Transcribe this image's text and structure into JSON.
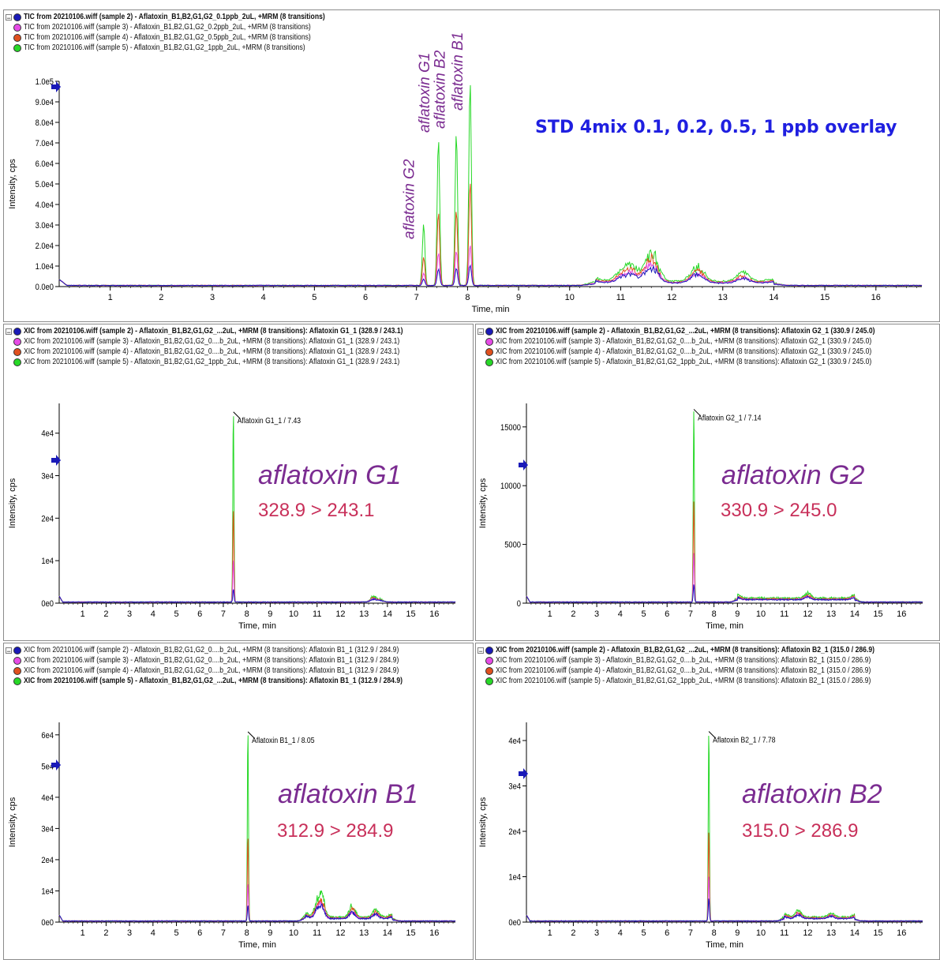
{
  "colors": {
    "sample2": "#1a1ab8",
    "sample3": "#e64be6",
    "sample4": "#e0501e",
    "sample5": "#27d827",
    "title_blue": "#1f1fe0",
    "label_purple": "#7b2c91",
    "mrm_red": "#c8305a"
  },
  "tic": {
    "legend": [
      {
        "color": "#1a1ab8",
        "text": "TIC from 20210106.wiff (sample 2) - Aflatoxin_B1,B2,G1,G2_0.1ppb_2uL, +MRM (8 transitions)",
        "bold": true
      },
      {
        "color": "#e64be6",
        "text": "TIC from 20210106.wiff (sample 3) - Aflatoxin_B1,B2,G1,G2_0.2ppb_2uL, +MRM (8 transitions)",
        "bold": false
      },
      {
        "color": "#e0501e",
        "text": "TIC from 20210106.wiff (sample 4) - Aflatoxin_B1,B2,G1,G2_0.5ppb_2uL, +MRM (8 transitions)",
        "bold": false
      },
      {
        "color": "#27d827",
        "text": "TIC from 20210106.wiff (sample 5) - Aflatoxin_B1,B2,G1,G2_1ppb_2uL, +MRM (8 transitions)",
        "bold": false
      }
    ],
    "overlay_title": "STD 4mix 0.1, 0.2, 0.5, 1 ppb overlay",
    "peak_labels": [
      "aflatoxin G2",
      "aflatoxin G1",
      "aflatoxin B2",
      "aflatoxin B1"
    ]
  },
  "panels": {
    "g1": {
      "legend": [
        {
          "color": "#1a1ab8",
          "text": "XIC from 20210106.wiff (sample 2) - Aflatoxin_B1,B2,G1,G2_...2uL, +MRM (8 transitions): Aflatoxin G1_1 (328.9 / 243.1)",
          "bold": true
        },
        {
          "color": "#e64be6",
          "text": "XIC from 20210106.wiff (sample 3) - Aflatoxin_B1,B2,G1,G2_0....b_2uL, +MRM (8 transitions): Aflatoxin G1_1 (328.9 / 243.1)",
          "bold": false
        },
        {
          "color": "#e0501e",
          "text": "XIC from 20210106.wiff (sample 4) - Aflatoxin_B1,B2,G1,G2_0....b_2uL, +MRM (8 transitions): Aflatoxin G1_1 (328.9 / 243.1)",
          "bold": false
        },
        {
          "color": "#27d827",
          "text": "XIC from 20210106.wiff (sample 5) - Aflatoxin_B1,B2,G1,G2_1ppb_2uL, +MRM (8 transitions): Aflatoxin G1_1 (328.9 / 243.1)",
          "bold": false
        }
      ],
      "name": "aflatoxin G1",
      "mrm": "328.9 > 243.1",
      "peak_annotation": "Aflatoxin G1_1 / 7.43"
    },
    "g2": {
      "legend": [
        {
          "color": "#1a1ab8",
          "text": "XIC from 20210106.wiff (sample 2) - Aflatoxin_B1,B2,G1,G2_...2uL, +MRM (8 transitions): Aflatoxin G2_1 (330.9 / 245.0)",
          "bold": true
        },
        {
          "color": "#e64be6",
          "text": "XIC from 20210106.wiff (sample 3) - Aflatoxin_B1,B2,G1,G2_0....b_2uL, +MRM (8 transitions): Aflatoxin G2_1 (330.9 / 245.0)",
          "bold": false
        },
        {
          "color": "#e0501e",
          "text": "XIC from 20210106.wiff (sample 4) - Aflatoxin_B1,B2,G1,G2_0....b_2uL, +MRM (8 transitions): Aflatoxin G2_1 (330.9 / 245.0)",
          "bold": false
        },
        {
          "color": "#27d827",
          "text": "XIC from 20210106.wiff (sample 5) - Aflatoxin_B1,B2,G1,G2_1ppb_2uL, +MRM (8 transitions): Aflatoxin G2_1 (330.9 / 245.0)",
          "bold": false
        }
      ],
      "name": "aflatoxin G2",
      "mrm": "330.9 > 245.0",
      "peak_annotation": "Aflatoxin G2_1 / 7.14"
    },
    "b1": {
      "legend": [
        {
          "color": "#1a1ab8",
          "text": "XIC from 20210106.wiff (sample 2) - Aflatoxin_B1,B2,G1,G2_0....b_2uL, +MRM (8 transitions): Aflatoxin B1_1 (312.9 / 284.9)",
          "bold": false
        },
        {
          "color": "#e64be6",
          "text": "XIC from 20210106.wiff (sample 3) - Aflatoxin_B1,B2,G1,G2_0....b_2uL, +MRM (8 transitions): Aflatoxin B1_1 (312.9 / 284.9)",
          "bold": false
        },
        {
          "color": "#e0501e",
          "text": "XIC from 20210106.wiff (sample 4) - Aflatoxin_B1,B2,G1,G2_0....b_2uL, +MRM (8 transitions): Aflatoxin B1_1 (312.9 / 284.9)",
          "bold": false
        },
        {
          "color": "#27d827",
          "text": "XIC from 20210106.wiff (sample 5) - Aflatoxin_B1,B2,G1,G2_...2uL, +MRM (8 transitions): Aflatoxin B1_1 (312.9 / 284.9)",
          "bold": true
        }
      ],
      "name": "aflatoxin B1",
      "mrm": "312.9 > 284.9",
      "peak_annotation": "Aflatoxin B1_1 / 8.05"
    },
    "b2": {
      "legend": [
        {
          "color": "#1a1ab8",
          "text": "XIC from 20210106.wiff (sample 2) - Aflatoxin_B1,B2,G1,G2_...2uL, +MRM (8 transitions): Aflatoxin B2_1 (315.0 / 286.9)",
          "bold": true
        },
        {
          "color": "#e64be6",
          "text": "XIC from 20210106.wiff (sample 3) - Aflatoxin_B1,B2,G1,G2_0....b_2uL, +MRM (8 transitions): Aflatoxin B2_1 (315.0 / 286.9)",
          "bold": false
        },
        {
          "color": "#e0501e",
          "text": "XIC from 20210106.wiff (sample 4) - Aflatoxin_B1,B2,G1,G2_0....b_2uL, +MRM (8 transitions): Aflatoxin B2_1 (315.0 / 286.9)",
          "bold": false
        },
        {
          "color": "#27d827",
          "text": "XIC from 20210106.wiff (sample 5) - Aflatoxin_B1,B2,G1,G2_1ppb_2uL, +MRM (8 transitions): Aflatoxin B2_1 (315.0 / 286.9)",
          "bold": false
        }
      ],
      "name": "aflatoxin B2",
      "mrm": "315.0 > 286.9",
      "peak_annotation": "Aflatoxin B2_1 / 7.78"
    }
  },
  "chart_data": [
    {
      "id": "tic",
      "type": "line",
      "xlabel": "Time, min",
      "ylabel": "Intensity, cps",
      "xlim": [
        0,
        16.9
      ],
      "ylim": [
        0,
        100000
      ],
      "xticks": [
        1,
        2,
        3,
        4,
        5,
        6,
        7,
        8,
        9,
        10,
        11,
        12,
        13,
        14,
        15,
        16
      ],
      "yticks": [
        0,
        10000,
        20000,
        30000,
        40000,
        50000,
        60000,
        70000,
        80000,
        90000,
        100000
      ],
      "yticklabels": [
        "0.0e0",
        "1.0e4",
        "2.0e4",
        "3.0e4",
        "4.0e4",
        "5.0e4",
        "6.0e4",
        "7.0e4",
        "8.0e4",
        "9.0e4",
        "1.0e5"
      ],
      "peaks": [
        {
          "rt": 7.14,
          "heights": [
            3000,
            6000,
            14000,
            30000
          ]
        },
        {
          "rt": 7.43,
          "heights": [
            8000,
            16000,
            36000,
            72000
          ]
        },
        {
          "rt": 7.78,
          "heights": [
            8500,
            17000,
            37000,
            75000
          ]
        },
        {
          "rt": 8.05,
          "heights": [
            10000,
            20000,
            51000,
            100000
          ]
        }
      ],
      "baseline_features": [
        [
          10.5,
          1500
        ],
        [
          11.0,
          3500
        ],
        [
          11.2,
          7000
        ],
        [
          11.6,
          14000
        ],
        [
          12.5,
          7000
        ],
        [
          13.4,
          4000
        ],
        [
          14.0,
          1000
        ]
      ],
      "series": [
        {
          "name": "TIC from 20210106.wiff (sample 2)"
        },
        {
          "name": "TIC from 20210106.wiff (sample 3)"
        },
        {
          "name": "TIC from 20210106.wiff (sample 4)"
        },
        {
          "name": "TIC from 20210106.wiff (sample 5)"
        }
      ]
    },
    {
      "id": "g1",
      "type": "line",
      "xlabel": "Time, min",
      "ylabel": "Intensity, cps",
      "xlim": [
        0,
        16.9
      ],
      "ylim": [
        0,
        47000
      ],
      "xticks": [
        1,
        2,
        3,
        4,
        5,
        6,
        7,
        8,
        9,
        10,
        11,
        12,
        13,
        14,
        15,
        16
      ],
      "yticks": [
        0,
        10000,
        20000,
        30000,
        40000
      ],
      "yticklabels": [
        "0e0",
        "1e4",
        "2e4",
        "3e4",
        "4e4"
      ],
      "peaks": [
        {
          "rt": 7.43,
          "heights": [
            3000,
            10000,
            22000,
            45000
          ]
        }
      ],
      "baseline_features": [
        [
          13.4,
          1200
        ],
        [
          13.7,
          600
        ]
      ],
      "series": [
        {
          "name": "sample 2"
        },
        {
          "name": "sample 3"
        },
        {
          "name": "sample 4"
        },
        {
          "name": "sample 5"
        }
      ]
    },
    {
      "id": "g2",
      "type": "line",
      "xlabel": "Time, min",
      "ylabel": "Intensity, cps",
      "xlim": [
        0,
        16.9
      ],
      "ylim": [
        0,
        17000
      ],
      "xticks": [
        1,
        2,
        3,
        4,
        5,
        6,
        7,
        8,
        9,
        10,
        11,
        12,
        13,
        14,
        15,
        16
      ],
      "yticks": [
        0,
        5000,
        10000,
        15000
      ],
      "yticklabels": [
        "0",
        "5000",
        "10000",
        "15000"
      ],
      "peaks": [
        {
          "rt": 7.14,
          "heights": [
            1500,
            4200,
            8700,
            16500
          ]
        }
      ],
      "baseline_features": [
        [
          9.0,
          300
        ],
        [
          12.0,
          400
        ],
        [
          14.0,
          300
        ]
      ],
      "series": [
        {
          "name": "sample 2"
        },
        {
          "name": "sample 3"
        },
        {
          "name": "sample 4"
        },
        {
          "name": "sample 5"
        }
      ]
    },
    {
      "id": "b1",
      "type": "line",
      "xlabel": "Time, min",
      "ylabel": "Intensity, cps",
      "xlim": [
        0,
        16.9
      ],
      "ylim": [
        0,
        64000
      ],
      "xticks": [
        1,
        2,
        3,
        4,
        5,
        6,
        7,
        8,
        9,
        10,
        11,
        12,
        13,
        14,
        15,
        16
      ],
      "yticks": [
        0,
        10000,
        20000,
        30000,
        40000,
        50000,
        60000
      ],
      "yticklabels": [
        "0e0",
        "1e4",
        "2e4",
        "3e4",
        "4e4",
        "5e4",
        "6e4"
      ],
      "peaks": [
        {
          "rt": 8.05,
          "heights": [
            5000,
            12000,
            27000,
            61000
          ]
        }
      ],
      "baseline_features": [
        [
          10.5,
          1500
        ],
        [
          11.0,
          4000
        ],
        [
          11.2,
          6000
        ],
        [
          12.5,
          3500
        ],
        [
          13.5,
          2500
        ],
        [
          14.2,
          800
        ]
      ],
      "series": [
        {
          "name": "sample 2"
        },
        {
          "name": "sample 3"
        },
        {
          "name": "sample 4"
        },
        {
          "name": "sample 5"
        }
      ]
    },
    {
      "id": "b2",
      "type": "line",
      "xlabel": "Time, min",
      "ylabel": "Intensity, cps",
      "xlim": [
        0,
        16.9
      ],
      "ylim": [
        0,
        44000
      ],
      "xticks": [
        1,
        2,
        3,
        4,
        5,
        6,
        7,
        8,
        9,
        10,
        11,
        12,
        13,
        14,
        15,
        16
      ],
      "yticks": [
        0,
        10000,
        20000,
        30000,
        40000
      ],
      "yticklabels": [
        "0e0",
        "1e4",
        "2e4",
        "3e4",
        "4e4"
      ],
      "peaks": [
        {
          "rt": 7.78,
          "heights": [
            5000,
            10000,
            20000,
            42000
          ]
        }
      ],
      "baseline_features": [
        [
          11.0,
          800
        ],
        [
          11.6,
          1500
        ],
        [
          13.0,
          900
        ],
        [
          14.0,
          500
        ]
      ],
      "series": [
        {
          "name": "sample 2"
        },
        {
          "name": "sample 3"
        },
        {
          "name": "sample 4"
        },
        {
          "name": "sample 5"
        }
      ]
    }
  ]
}
